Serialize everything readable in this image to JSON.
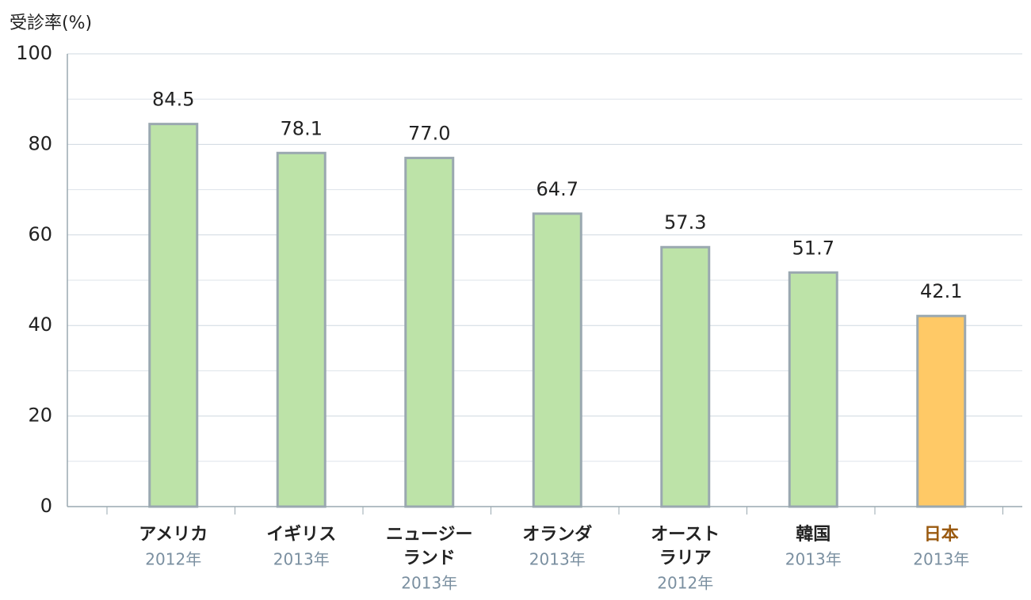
{
  "chart_data": {
    "type": "bar",
    "y_axis_label": "受診率(%)",
    "categories": [
      [
        "アメリカ"
      ],
      [
        "イギリス"
      ],
      [
        "ニュージー",
        "ランド"
      ],
      [
        "オランダ"
      ],
      [
        "オースト",
        "ラリア"
      ],
      [
        "韓国"
      ],
      [
        "日本"
      ]
    ],
    "years": [
      "2012年",
      "2013年",
      "2013年",
      "2013年",
      "2012年",
      "2013年",
      "2013年"
    ],
    "values": [
      84.5,
      78.1,
      77.0,
      64.7,
      57.3,
      51.7,
      42.1
    ],
    "value_labels": [
      "84.5",
      "78.1",
      "77.0",
      "64.7",
      "57.3",
      "51.7",
      "42.1"
    ],
    "colors": [
      "#bde3a8",
      "#bde3a8",
      "#bde3a8",
      "#bde3a8",
      "#bde3a8",
      "#bde3a8",
      "#ffc966"
    ],
    "label_colors": [
      "#222222",
      "#222222",
      "#222222",
      "#222222",
      "#222222",
      "#222222",
      "#9a5a10"
    ],
    "bar_outline": "#9aa8b0",
    "ylim": [
      0,
      100
    ],
    "yticks": [
      0,
      20,
      40,
      60,
      80,
      100
    ],
    "minor_yticks": [
      10,
      30,
      50,
      70,
      90
    ],
    "grid": true
  }
}
